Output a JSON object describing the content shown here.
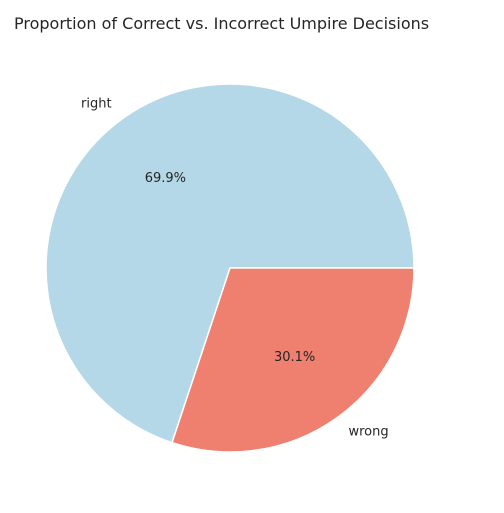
{
  "chart_data": {
    "type": "pie",
    "title": "Proportion of Correct vs. Incorrect Umpire Decisions",
    "slices": [
      {
        "label": "right",
        "value": 69.9,
        "pct_label": "69.9%",
        "color": "#b4d8e7"
      },
      {
        "label": "wrong",
        "value": 30.1,
        "pct_label": "30.1%",
        "color": "#ef7f6e"
      }
    ],
    "start_angle": "0 degrees (3 o'clock), counter-clockwise",
    "edge_color": "#ffffff"
  }
}
